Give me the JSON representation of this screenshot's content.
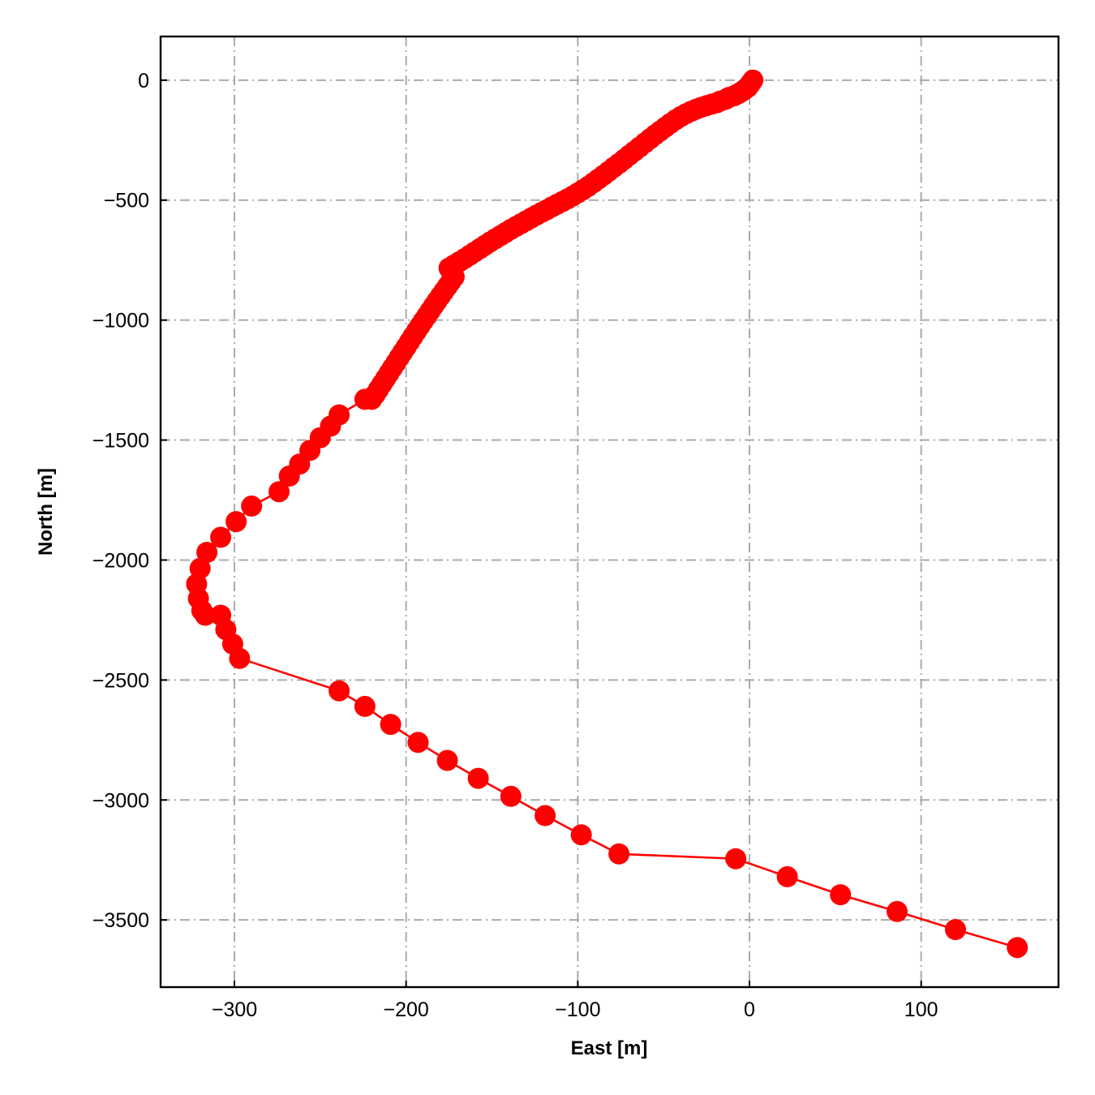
{
  "chart_data": {
    "type": "line",
    "xlabel": "East [m]",
    "ylabel": "North [m]",
    "xlim": [
      -343,
      180
    ],
    "ylim": [
      -3780,
      182
    ],
    "xticks": [
      -300,
      -200,
      -100,
      0,
      100
    ],
    "yticks": [
      0,
      -500,
      -1000,
      -1500,
      -2000,
      -2500,
      -3000,
      -3500
    ],
    "xtick_labels": [
      "−300",
      "−200",
      "−100",
      "0",
      "100"
    ],
    "ytick_labels": [
      "0",
      "−500",
      "−1000",
      "−1500",
      "−2000",
      "−2500",
      "−3000",
      "−3500"
    ],
    "grid": true,
    "grid_style": "dash-dot",
    "series": [
      {
        "color": "#ff0000",
        "marker": "circle",
        "x": [
          2,
          1,
          0,
          -1,
          -3,
          -5,
          -7,
          -9,
          -12,
          -14,
          -17,
          -19,
          -22,
          -25,
          -28,
          -31,
          -34,
          -37,
          -40,
          -43,
          -46,
          -49,
          -52,
          -55,
          -58,
          -61,
          -64,
          -67,
          -70,
          -73,
          -76,
          -79,
          -82,
          -85,
          -88,
          -91,
          -94,
          -97,
          -100,
          -103,
          -106,
          -109,
          -112,
          -115,
          -118,
          -121,
          -124,
          -127,
          -130,
          -133,
          -136,
          -139,
          -142,
          -145,
          -148,
          -151,
          -154,
          -157,
          -160,
          -163,
          -166,
          -169,
          -172,
          -175,
          -172,
          -174,
          -176,
          -178,
          -180,
          -182,
          -184,
          -186,
          -188,
          -190,
          -192,
          -194,
          -196,
          -198,
          -200,
          -202,
          -204,
          -206,
          -208,
          -210,
          -212,
          -214,
          -216,
          -218,
          -220,
          -224,
          -239,
          -244,
          -250,
          -256,
          -262,
          -268,
          -274,
          -290,
          -299,
          -308,
          -316,
          -320,
          -322,
          -321,
          -319,
          -317,
          -308,
          -305,
          -301,
          -297,
          -239,
          -224,
          -209,
          -193,
          -176,
          -158,
          -139,
          -119,
          -98,
          -76,
          -8,
          22,
          53,
          86,
          120,
          156
        ],
        "y": [
          0,
          -10,
          -20,
          -30,
          -40,
          -50,
          -58,
          -65,
          -72,
          -80,
          -87,
          -94,
          -100,
          -106,
          -113,
          -121,
          -130,
          -140,
          -152,
          -165,
          -180,
          -196,
          -212,
          -228,
          -245,
          -262,
          -279,
          -296,
          -313,
          -330,
          -347,
          -363,
          -380,
          -396,
          -412,
          -428,
          -443,
          -457,
          -470,
          -483,
          -495,
          -506,
          -517,
          -528,
          -540,
          -551,
          -562,
          -574,
          -586,
          -598,
          -610,
          -622,
          -635,
          -648,
          -661,
          -674,
          -688,
          -702,
          -716,
          -730,
          -744,
          -757,
          -770,
          -783,
          -820,
          -840,
          -860,
          -880,
          -900,
          -920,
          -941,
          -962,
          -983,
          -1004,
          -1025,
          -1046,
          -1068,
          -1090,
          -1112,
          -1134,
          -1156,
          -1178,
          -1200,
          -1222,
          -1244,
          -1266,
          -1288,
          -1310,
          -1330,
          -1330,
          -1395,
          -1442,
          -1490,
          -1543,
          -1600,
          -1650,
          -1715,
          -1775,
          -1840,
          -1905,
          -1968,
          -2035,
          -2100,
          -2160,
          -2210,
          -2230,
          -2230,
          -2290,
          -2350,
          -2410,
          -2545,
          -2610,
          -2685,
          -2760,
          -2835,
          -2910,
          -2985,
          -3065,
          -3145,
          -3225,
          -3245,
          -3320,
          -3395,
          -3465,
          -3540,
          -3615
        ]
      }
    ]
  }
}
